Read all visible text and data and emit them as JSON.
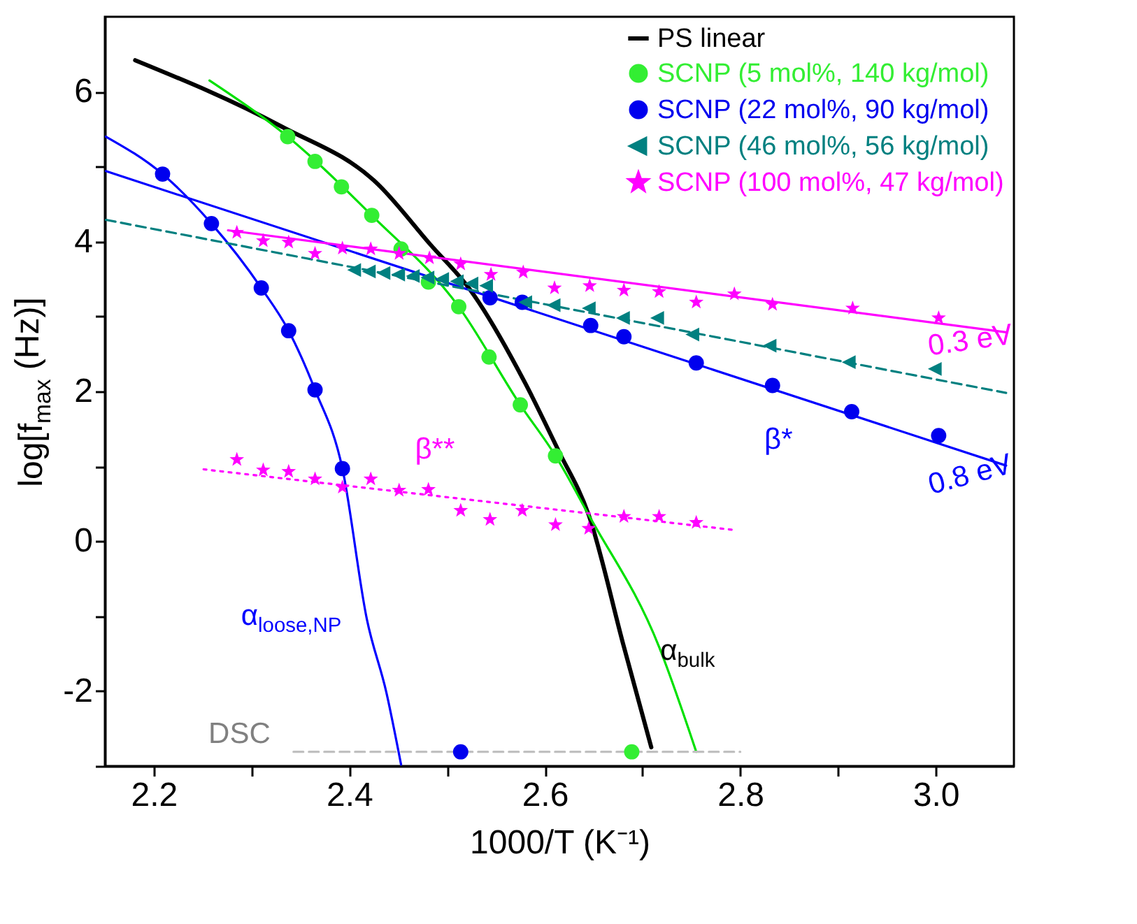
{
  "chart_data": {
    "type": "scatter",
    "xlabel": "1000/T (K⁻¹)",
    "ylabel": "log[f$_{max}$ (Hz)]",
    "xlim": [
      2.15,
      3.08
    ],
    "ylim": [
      -3,
      7
    ],
    "xticks": [
      2.2,
      {
        "value": 2.3,
        "label": null
      },
      2.4,
      {
        "value": 2.5,
        "label": null
      },
      2.6,
      {
        "value": 2.7,
        "label": null
      },
      2.8,
      {
        "value": 2.9,
        "label": null
      },
      {
        "value": 3,
        "label": "3.0"
      }
    ],
    "yticks": [
      {
        "value": -3,
        "label": null
      },
      -2,
      {
        "value": -1,
        "label": null
      },
      0,
      {
        "value": 1,
        "label": null
      },
      2,
      {
        "value": 3,
        "label": null
      },
      4,
      {
        "value": 5,
        "label": null
      },
      6
    ],
    "grid": false,
    "legend": "top right",
    "series": [
      {
        "name": "PS linear",
        "type": "line",
        "color": "#000000",
        "marker": "none",
        "line_style": "solid",
        "x": [
          2.181,
          2.33,
          2.429,
          2.483,
          2.524,
          2.58,
          2.614,
          2.645,
          2.681,
          2.709
        ],
        "values": [
          6.42,
          5.54,
          4.77,
          3.96,
          3.35,
          2.11,
          1.21,
          0.35,
          -1.41,
          -2.75
        ]
      },
      {
        "type": "line",
        "color": "#00e000",
        "marker": "none",
        "line_style": "solid",
        "x": [
          2.257,
          2.337,
          2.423,
          2.512,
          2.575,
          2.611,
          2.645,
          2.717,
          2.755
        ],
        "values": [
          6.15,
          5.4,
          4.35,
          3.13,
          1.82,
          1.14,
          0.35,
          -1.41,
          -2.81
        ]
      },
      {
        "type": "line",
        "color": "#0000ff",
        "marker": "none",
        "line_style": "solid",
        "x": [
          2.151,
          2.209,
          2.259,
          2.31,
          2.338,
          2.365,
          2.393,
          2.418,
          2.438,
          2.453
        ],
        "values": [
          5.4,
          4.9,
          4.24,
          3.38,
          2.81,
          2.02,
          0.97,
          -1.04,
          -2.02,
          -2.98
        ]
      },
      {
        "type": "line",
        "color": "#0000ff",
        "marker": "none",
        "line_style": "solid",
        "x": [
          2.151,
          3.072
        ],
        "values": [
          4.94,
          1.01
        ]
      },
      {
        "type": "line",
        "color": "#008080",
        "marker": "none",
        "line_style": "dashed",
        "x": [
          2.151,
          3.072
        ],
        "values": [
          4.29,
          1.98
        ]
      },
      {
        "type": "line",
        "color": "#ff00ff",
        "marker": "none",
        "line_style": "solid",
        "x": [
          2.276,
          3.072
        ],
        "values": [
          4.15,
          2.79
        ]
      },
      {
        "type": "line",
        "color": "#ff00ff",
        "marker": "none",
        "line_style": "dotted",
        "x": [
          2.251,
          2.794
        ],
        "values": [
          0.96,
          0.15
        ]
      },
      {
        "type": "line",
        "color": "#c0c0c0",
        "marker": "none",
        "line_style": "dashed",
        "x": [
          2.343,
          2.8
        ],
        "values": [
          -2.81,
          -2.81
        ]
      },
      {
        "name": "SCNP (5 mol%, 140 kg/mol)",
        "type": "scatter",
        "color": "#33ee33",
        "marker": "circle",
        "x": [
          2.337,
          2.365,
          2.392,
          2.423,
          2.453,
          2.481,
          2.512,
          2.543,
          2.575,
          2.611,
          2.689
        ],
        "values": [
          5.4,
          5.07,
          4.73,
          4.35,
          3.9,
          3.46,
          3.13,
          2.46,
          1.82,
          1.14,
          -2.81
        ]
      },
      {
        "name": "SCNP (22 mol%, 90 kg/mol)",
        "type": "scatter",
        "color": "#0000ee",
        "marker": "circle",
        "x": [
          2.209,
          2.259,
          2.31,
          2.338,
          2.365,
          2.393,
          2.514,
          2.544,
          2.577,
          2.647,
          2.681,
          2.755,
          2.833,
          2.914,
          3.003
        ],
        "values": [
          4.9,
          4.24,
          3.38,
          2.81,
          2.02,
          0.97,
          -2.81,
          3.25,
          3.19,
          2.88,
          2.73,
          2.38,
          2.08,
          1.73,
          1.41
        ]
      },
      {
        "name": "SCNP (46 mol%, 56 kg/mol)",
        "type": "scatter",
        "color": "#008080",
        "marker": "triangle",
        "x": [
          2.405,
          2.42,
          2.435,
          2.45,
          2.465,
          2.48,
          2.495,
          2.51,
          2.525,
          2.54,
          2.58,
          2.609,
          2.645,
          2.68,
          2.715,
          2.751,
          2.83,
          2.911,
          2.999
        ],
        "values": [
          3.62,
          3.6,
          3.58,
          3.56,
          3.54,
          3.52,
          3.5,
          3.47,
          3.44,
          3.41,
          3.19,
          3.15,
          3.11,
          2.98,
          2.98,
          2.76,
          2.61,
          2.39,
          2.3
        ]
      },
      {
        "name": "SCNP (100 mol%, 47 kg/mol)",
        "type": "scatter",
        "color": "#ff00ff",
        "marker": "star",
        "x": [
          2.285,
          2.312,
          2.338,
          2.365,
          2.393,
          2.422,
          2.451,
          2.482,
          2.514,
          2.545,
          2.578,
          2.61,
          2.646,
          2.681,
          2.717,
          2.755,
          2.794,
          2.833,
          2.915,
          3.003,
          2.285,
          2.312,
          2.338,
          2.365,
          2.393,
          2.422,
          2.451,
          2.481,
          2.514,
          2.544,
          2.577,
          2.611,
          2.645,
          2.681,
          2.717,
          2.755
        ],
        "values": [
          4.12,
          4.01,
          3.99,
          3.84,
          3.91,
          3.9,
          3.84,
          3.78,
          3.7,
          3.56,
          3.59,
          3.38,
          3.41,
          3.35,
          3.33,
          3.19,
          3.3,
          3.16,
          3.11,
          2.98,
          1.09,
          0.95,
          0.93,
          0.83,
          0.72,
          0.83,
          0.68,
          0.69,
          0.41,
          0.29,
          0.41,
          0.22,
          0.17,
          0.33,
          0.33,
          0.25
        ]
      }
    ],
    "annotations": [
      "0.3 eV",
      "0.8 eV",
      "β**",
      "β*",
      "α$_{loose,NP}$",
      "α$_{bulk}$",
      "DSC"
    ]
  }
}
